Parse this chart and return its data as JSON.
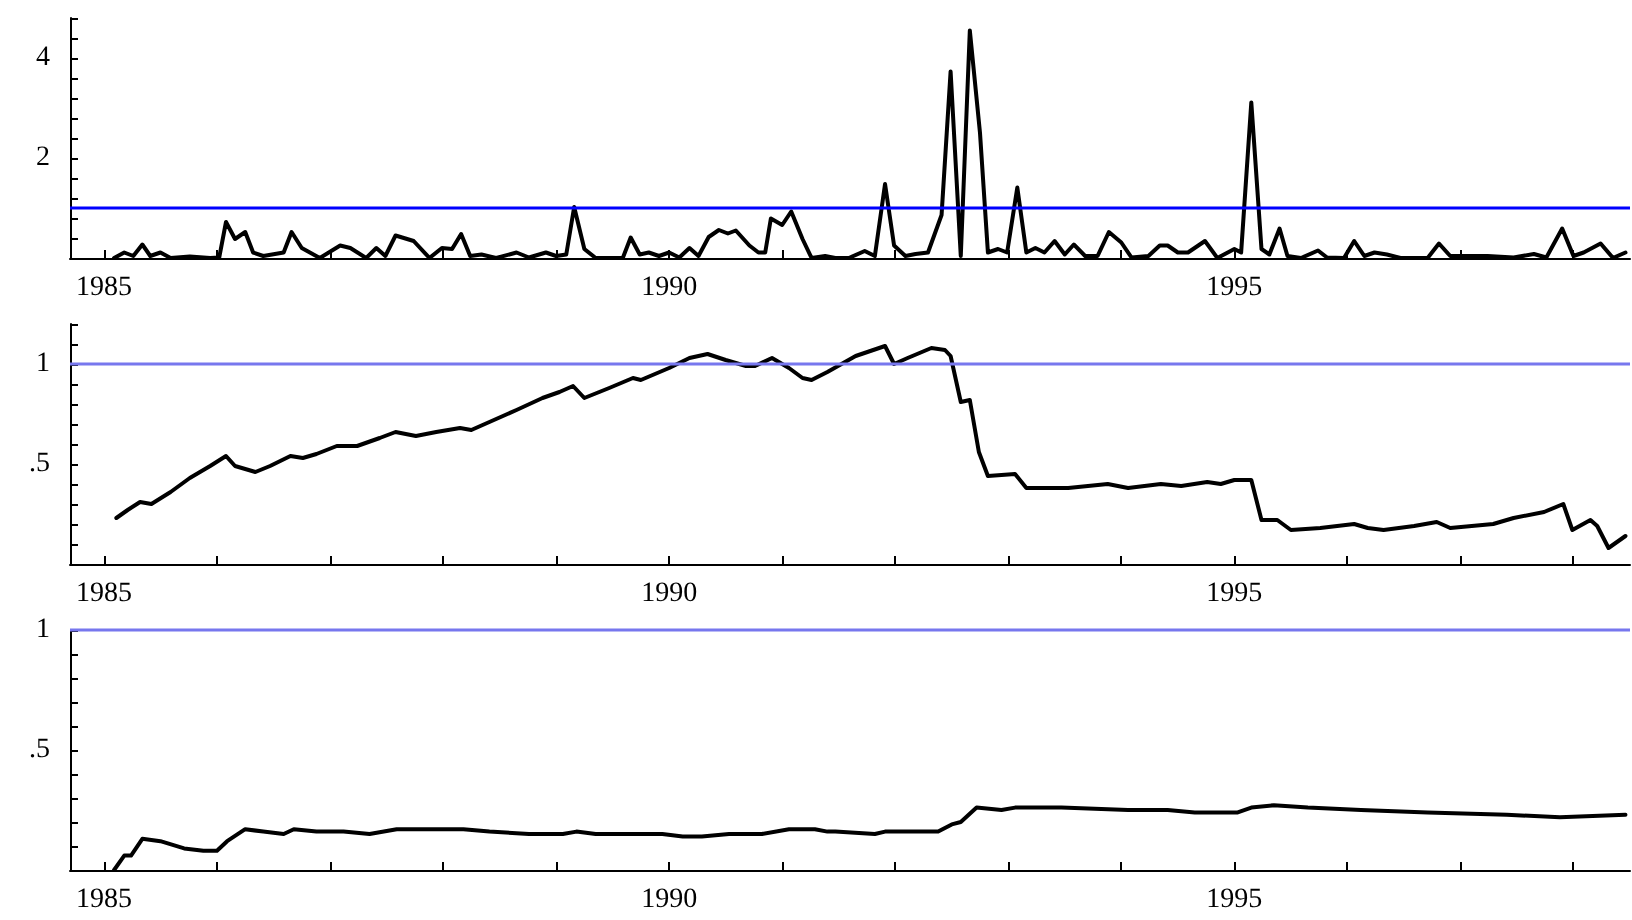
{
  "chart_data": [
    {
      "type": "line",
      "xlim": [
        1984.7,
        1998.5
      ],
      "xticks": [
        {
          "value": 1985,
          "label": "1985"
        },
        {
          "value": 1986,
          "label": null
        },
        {
          "value": 1987,
          "label": null
        },
        {
          "value": 1988,
          "label": null
        },
        {
          "value": 1989,
          "label": null
        },
        {
          "value": 1990,
          "label": "1990"
        },
        {
          "value": 1991,
          "label": null
        },
        {
          "value": 1992,
          "label": null
        },
        {
          "value": 1993,
          "label": null
        },
        {
          "value": 1994,
          "label": null
        },
        {
          "value": 1995,
          "label": "1995"
        },
        {
          "value": 1996,
          "label": null
        },
        {
          "value": 1997,
          "label": null
        },
        {
          "value": 1998,
          "label": null
        }
      ],
      "ylim": [
        0,
        4.8
      ],
      "yticks": [
        {
          "value": 0,
          "label": null
        },
        {
          "value": 0.4,
          "label": null
        },
        {
          "value": 0.8,
          "label": null
        },
        {
          "value": 1.2,
          "label": null
        },
        {
          "value": 1.6,
          "label": null
        },
        2,
        {
          "value": 2.4,
          "label": null
        },
        {
          "value": 2.8,
          "label": null
        },
        {
          "value": 3.2,
          "label": null
        },
        {
          "value": 3.6,
          "label": null
        },
        4,
        {
          "value": 4.4,
          "label": null
        },
        {
          "value": 4.8,
          "label": null
        }
      ],
      "ref_lines": [
        {
          "axis": "y",
          "value": 1,
          "color": "#0000ff"
        }
      ],
      "x": [
        1985.09,
        1985.18,
        1985.26,
        1985.34,
        1985.41,
        1985.5,
        1985.59,
        1985.76,
        1985.94,
        1986.02,
        1986.08,
        1986.16,
        1986.25,
        1986.32,
        1986.41,
        1986.59,
        1986.66,
        1986.75,
        1986.91,
        1987.09,
        1987.18,
        1987.32,
        1987.41,
        1987.49,
        1987.58,
        1987.74,
        1987.88,
        1987.99,
        1988.08,
        1988.16,
        1988.24,
        1988.34,
        1988.47,
        1988.65,
        1988.76,
        1988.91,
        1989.0,
        1989.09,
        1989.16,
        1989.25,
        1989.35,
        1989.59,
        1989.66,
        1989.74,
        1989.82,
        1989.91,
        1990.0,
        1990.09,
        1990.18,
        1990.26,
        1990.35,
        1990.44,
        1990.52,
        1990.59,
        1990.71,
        1990.79,
        1990.85,
        1990.9,
        1991.0,
        1991.08,
        1991.18,
        1991.26,
        1991.38,
        1991.47,
        1991.59,
        1991.73,
        1991.82,
        1991.91,
        1991.99,
        1992.09,
        1992.18,
        1992.29,
        1992.41,
        1992.49,
        1992.58,
        1992.66,
        1992.75,
        1992.82,
        1992.91,
        1992.99,
        1993.08,
        1993.16,
        1993.24,
        1993.32,
        1993.41,
        1993.5,
        1993.58,
        1993.68,
        1993.79,
        1993.89,
        1994.0,
        1994.09,
        1994.24,
        1994.34,
        1994.41,
        1994.5,
        1994.59,
        1994.74,
        1994.85,
        1995.0,
        1995.06,
        1995.15,
        1995.24,
        1995.31,
        1995.4,
        1995.47,
        1995.59,
        1995.74,
        1995.82,
        1995.97,
        1996.06,
        1996.15,
        1996.24,
        1996.35,
        1996.47,
        1996.71,
        1996.81,
        1996.91,
        1997.06,
        1997.24,
        1997.47,
        1997.65,
        1997.76,
        1997.9,
        1998.0,
        1998.09,
        1998.24,
        1998.35,
        1998.46
      ],
      "series": [
        {
          "color": "#000000",
          "values": [
            0,
            0.11,
            0.04,
            0.27,
            0.04,
            0.11,
            0,
            0.03,
            0,
            0.01,
            0.72,
            0.38,
            0.52,
            0.11,
            0.04,
            0.11,
            0.52,
            0.2,
            0,
            0.25,
            0.2,
            0,
            0.2,
            0.04,
            0.45,
            0.34,
            0,
            0.2,
            0.18,
            0.48,
            0.04,
            0.07,
            0,
            0.11,
            0.01,
            0.11,
            0.04,
            0.07,
            1.02,
            0.18,
            0,
            0,
            0.41,
            0.07,
            0.11,
            0.04,
            0.11,
            0.01,
            0.2,
            0.04,
            0.42,
            0.56,
            0.49,
            0.55,
            0.25,
            0.11,
            0.11,
            0.79,
            0.66,
            0.93,
            0.38,
            0,
            0.04,
            0,
            0,
            0.14,
            0.04,
            1.48,
            0.25,
            0.04,
            0.08,
            0.11,
            0.86,
            3.73,
            0.04,
            4.55,
            2.5,
            0.11,
            0.18,
            0.11,
            1.41,
            0.11,
            0.2,
            0.11,
            0.34,
            0.07,
            0.27,
            0.04,
            0.04,
            0.52,
            0.31,
            0.01,
            0.04,
            0.25,
            0.25,
            0.11,
            0.11,
            0.34,
            0,
            0.18,
            0.11,
            3.11,
            0.18,
            0.07,
            0.59,
            0.04,
            0,
            0.15,
            0.01,
            0,
            0.34,
            0.04,
            0.11,
            0.07,
            0,
            0,
            0.29,
            0.04,
            0.04,
            0.04,
            0.01,
            0.08,
            0.01,
            0.59,
            0.04,
            0.11,
            0.29,
            0,
            0.11
          ]
        }
      ]
    },
    {
      "type": "line",
      "xlim": [
        1984.7,
        1998.5
      ],
      "xticks": [
        {
          "value": 1985,
          "label": "1985"
        },
        {
          "value": 1986,
          "label": null
        },
        {
          "value": 1987,
          "label": null
        },
        {
          "value": 1988,
          "label": null
        },
        {
          "value": 1989,
          "label": null
        },
        {
          "value": 1990,
          "label": "1990"
        },
        {
          "value": 1991,
          "label": null
        },
        {
          "value": 1992,
          "label": null
        },
        {
          "value": 1993,
          "label": null
        },
        {
          "value": 1994,
          "label": null
        },
        {
          "value": 1995,
          "label": "1995"
        },
        {
          "value": 1996,
          "label": null
        },
        {
          "value": 1997,
          "label": null
        },
        {
          "value": 1998,
          "label": null
        }
      ],
      "ylim": [
        0,
        1.2
      ],
      "yticks": [
        {
          "value": 0,
          "label": null
        },
        {
          "value": 0.1,
          "label": null
        },
        {
          "value": 0.2,
          "label": null
        },
        {
          "value": 0.3,
          "label": null
        },
        {
          "value": 0.4,
          "label": null
        },
        {
          "value": 0.5,
          "label": ".5"
        },
        {
          "value": 0.6,
          "label": null
        },
        {
          "value": 0.7,
          "label": null
        },
        {
          "value": 0.8,
          "label": null
        },
        {
          "value": 0.9,
          "label": null
        },
        1,
        {
          "value": 1.1,
          "label": null
        },
        {
          "value": 1.2,
          "label": null
        }
      ],
      "ref_lines": [
        {
          "axis": "y",
          "value": 1,
          "color": "#7777ee"
        }
      ],
      "x": [
        1985.11,
        1985.21,
        1985.32,
        1985.42,
        1985.59,
        1985.76,
        1985.94,
        1986.08,
        1986.16,
        1986.34,
        1986.47,
        1986.65,
        1986.76,
        1986.88,
        1987.06,
        1987.24,
        1987.44,
        1987.58,
        1987.76,
        1987.94,
        1988.15,
        1988.25,
        1988.41,
        1988.65,
        1988.88,
        1989.03,
        1989.15,
        1989.25,
        1989.47,
        1989.68,
        1989.75,
        1990.0,
        1990.18,
        1990.34,
        1990.5,
        1990.68,
        1990.76,
        1990.91,
        1991.06,
        1991.18,
        1991.26,
        1991.4,
        1991.65,
        1991.91,
        1991.99,
        1992.11,
        1992.32,
        1992.44,
        1992.49,
        1992.58,
        1992.66,
        1992.74,
        1992.82,
        1993.06,
        1993.16,
        1993.38,
        1993.53,
        1993.88,
        1994.06,
        1994.35,
        1994.53,
        1994.76,
        1994.88,
        1995.0,
        1995.15,
        1995.24,
        1995.38,
        1995.5,
        1995.76,
        1996.06,
        1996.18,
        1996.32,
        1996.59,
        1996.79,
        1996.91,
        1997.29,
        1997.47,
        1997.74,
        1997.91,
        1997.99,
        1998.15,
        1998.21,
        1998.31,
        1998.46
      ],
      "series": [
        {
          "color": "#000000",
          "values": [
            0.23,
            0.27,
            0.31,
            0.3,
            0.36,
            0.43,
            0.49,
            0.54,
            0.49,
            0.46,
            0.49,
            0.54,
            0.53,
            0.55,
            0.59,
            0.59,
            0.63,
            0.66,
            0.64,
            0.66,
            0.68,
            0.67,
            0.71,
            0.77,
            0.83,
            0.86,
            0.89,
            0.83,
            0.88,
            0.93,
            0.92,
            0.98,
            1.03,
            1.05,
            1.02,
            0.99,
            0.99,
            1.03,
            0.98,
            0.93,
            0.92,
            0.96,
            1.04,
            1.09,
            1.0,
            1.03,
            1.08,
            1.07,
            1.04,
            0.81,
            0.82,
            0.56,
            0.44,
            0.45,
            0.38,
            0.38,
            0.38,
            0.4,
            0.38,
            0.4,
            0.39,
            0.41,
            0.4,
            0.42,
            0.42,
            0.22,
            0.22,
            0.17,
            0.18,
            0.2,
            0.18,
            0.17,
            0.19,
            0.21,
            0.18,
            0.2,
            0.23,
            0.26,
            0.3,
            0.17,
            0.22,
            0.19,
            0.08,
            0.14
          ]
        }
      ]
    },
    {
      "type": "line",
      "xlim": [
        1984.7,
        1998.5
      ],
      "xticks": [
        {
          "value": 1985,
          "label": "1985"
        },
        {
          "value": 1986,
          "label": null
        },
        {
          "value": 1987,
          "label": null
        },
        {
          "value": 1988,
          "label": null
        },
        {
          "value": 1989,
          "label": null
        },
        {
          "value": 1990,
          "label": "1990"
        },
        {
          "value": 1991,
          "label": null
        },
        {
          "value": 1992,
          "label": null
        },
        {
          "value": 1993,
          "label": null
        },
        {
          "value": 1994,
          "label": null
        },
        {
          "value": 1995,
          "label": "1995"
        },
        {
          "value": 1996,
          "label": null
        },
        {
          "value": 1997,
          "label": null
        },
        {
          "value": 1998,
          "label": null
        }
      ],
      "ylim": [
        0,
        1
      ],
      "yticks": [
        {
          "value": 0,
          "label": null
        },
        {
          "value": 0.1,
          "label": null
        },
        {
          "value": 0.2,
          "label": null
        },
        {
          "value": 0.3,
          "label": null
        },
        {
          "value": 0.4,
          "label": null
        },
        {
          "value": 0.5,
          "label": ".5"
        },
        {
          "value": 0.6,
          "label": null
        },
        {
          "value": 0.7,
          "label": null
        },
        {
          "value": 0.8,
          "label": null
        },
        {
          "value": 0.9,
          "label": null
        },
        1
      ],
      "ref_lines": [
        {
          "axis": "y",
          "value": 1,
          "color": "#7777ee"
        }
      ],
      "x": [
        1985.09,
        1985.18,
        1985.24,
        1985.34,
        1985.5,
        1985.71,
        1985.88,
        1986.0,
        1986.09,
        1986.25,
        1986.41,
        1986.59,
        1986.68,
        1986.88,
        1987.12,
        1987.35,
        1987.59,
        1987.76,
        1988.0,
        1988.18,
        1988.41,
        1988.76,
        1988.94,
        1989.06,
        1989.18,
        1989.35,
        1989.65,
        1989.94,
        1990.12,
        1990.29,
        1990.53,
        1990.82,
        1991.06,
        1991.29,
        1991.4,
        1991.47,
        1991.82,
        1991.91,
        1992.18,
        1992.38,
        1992.5,
        1992.58,
        1992.72,
        1992.94,
        1993.06,
        1993.47,
        1994.06,
        1994.41,
        1994.65,
        1995.03,
        1995.15,
        1995.35,
        1995.65,
        1996.12,
        1996.71,
        1997.41,
        1997.88,
        1998.46
      ],
      "series": [
        {
          "color": "#000000",
          "values": [
            0,
            0.06,
            0.06,
            0.13,
            0.12,
            0.09,
            0.08,
            0.08,
            0.12,
            0.17,
            0.16,
            0.15,
            0.17,
            0.16,
            0.16,
            0.15,
            0.17,
            0.17,
            0.17,
            0.17,
            0.16,
            0.15,
            0.15,
            0.15,
            0.16,
            0.15,
            0.15,
            0.15,
            0.14,
            0.14,
            0.15,
            0.15,
            0.17,
            0.17,
            0.16,
            0.16,
            0.15,
            0.16,
            0.16,
            0.16,
            0.19,
            0.2,
            0.26,
            0.25,
            0.26,
            0.26,
            0.25,
            0.25,
            0.24,
            0.24,
            0.26,
            0.27,
            0.26,
            0.25,
            0.24,
            0.23,
            0.22,
            0.23
          ]
        }
      ]
    }
  ]
}
